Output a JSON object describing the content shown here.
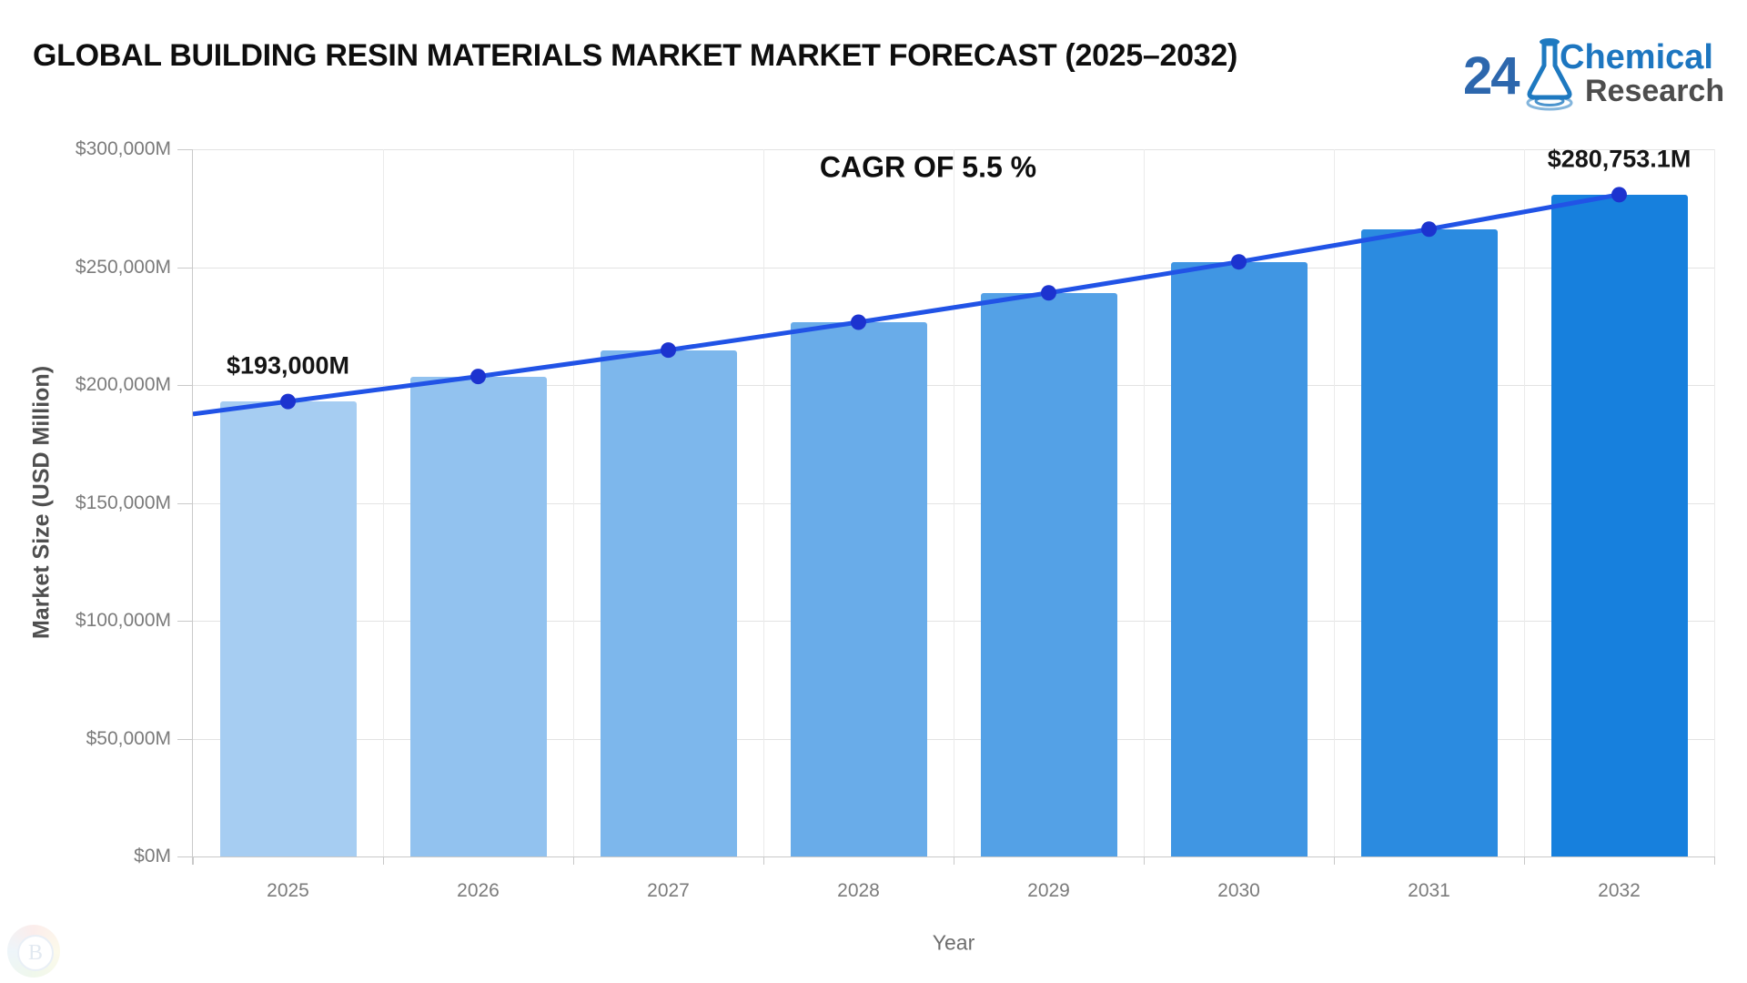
{
  "header": {
    "title": "GLOBAL BUILDING RESIN MATERIALS MARKET MARKET FORECAST (2025–2032)"
  },
  "logo": {
    "number": "24",
    "word1": "Chemical",
    "word2": "Research",
    "blue": "#1d76c0",
    "gray": "#4d4d4d"
  },
  "annotations": {
    "cagr_label": "CAGR OF 5.5 %",
    "first_value_label": "$193,000M",
    "last_value_label": "$280,753.1M"
  },
  "watermark": {
    "letter": "B"
  },
  "chart_data": {
    "type": "bar",
    "title": "GLOBAL BUILDING RESIN MATERIALS MARKET MARKET FORECAST (2025–2032)",
    "xlabel": "Year",
    "ylabel": "Market Size (USD Million)",
    "categories": [
      "2025",
      "2026",
      "2027",
      "2028",
      "2029",
      "2030",
      "2031",
      "2032"
    ],
    "series": [
      {
        "name": "Market Size bars",
        "type": "bar",
        "values": [
          193000,
          203615,
          214813.8,
          226628.6,
          239093.2,
          252243.3,
          266116.7,
          280753.1
        ],
        "bar_colors": [
          "#A6CDF2",
          "#92C2EF",
          "#7DB7EC",
          "#69ACE9",
          "#54A1E6",
          "#4096E3",
          "#2B8BE0",
          "#1780DD"
        ]
      },
      {
        "name": "Trend line",
        "type": "line",
        "values": [
          193000,
          203615,
          214813.8,
          226628.6,
          239093.2,
          252243.3,
          266116.7,
          280753.1
        ],
        "line_color": "#2153E6",
        "marker_color": "#1C33CF"
      }
    ],
    "ylim": [
      0,
      300000
    ],
    "yticks": {
      "values": [
        0,
        50000,
        100000,
        150000,
        200000,
        250000,
        300000
      ],
      "labels": [
        "$0M",
        "$50,000M",
        "$100,000M",
        "$150,000M",
        "$200,000M",
        "$250,000M",
        "$300,000M"
      ]
    },
    "grid": true,
    "legend": false,
    "cagr_percent": 5.5
  }
}
